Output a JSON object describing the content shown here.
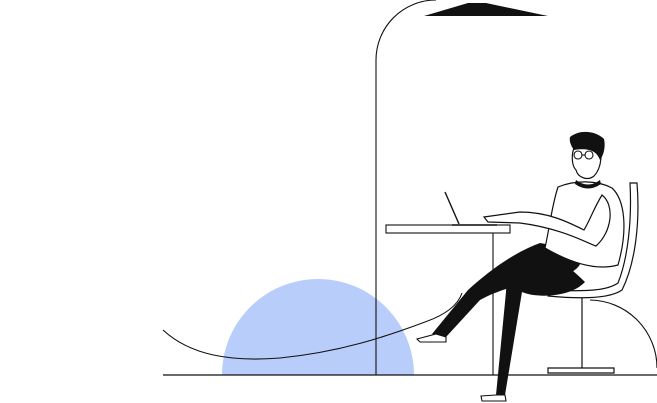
{
  "illustration": {
    "accent_color": "#b9cdfb",
    "ink_color": "#111111",
    "background_color": "#ffffff"
  }
}
